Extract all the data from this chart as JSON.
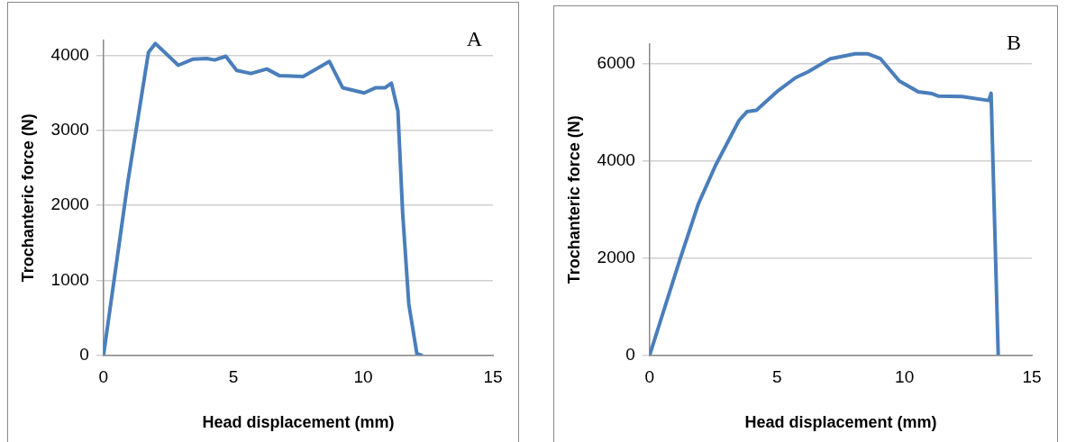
{
  "chart_data": [
    {
      "type": "line",
      "xlabel": "Head displacement (mm)",
      "ylabel": "Trochanteric force (N)",
      "annotations": [
        "A"
      ],
      "series": [
        {
          "color": "#4a7ebb",
          "x": [
            0,
            0.94,
            1.73,
            2.0,
            2.88,
            3.43,
            3.98,
            4.28,
            4.71,
            5.13,
            5.68,
            6.29,
            6.78,
            7.69,
            8.7,
            9.21,
            10.04,
            10.49,
            10.85,
            11.09,
            11.34,
            11.52,
            11.76,
            12.07,
            12.25
          ],
          "values": [
            0,
            2320,
            4040,
            4160,
            3870,
            3950,
            3960,
            3940,
            3990,
            3800,
            3760,
            3820,
            3730,
            3720,
            3920,
            3570,
            3500,
            3570,
            3570,
            3630,
            3260,
            1910,
            680,
            20,
            0
          ]
        }
      ],
      "xlim": [
        0,
        15
      ],
      "xticks": [
        0,
        5,
        10,
        15
      ],
      "ylim": [
        0,
        4200
      ],
      "yticks": [
        0,
        1000,
        2000,
        3000,
        4000
      ],
      "grid": "y",
      "legend": false,
      "marker": "none",
      "line_style": "solid"
    },
    {
      "type": "line",
      "xlabel": "Head displacement (mm)",
      "ylabel": "Trochanteric force (N)",
      "annotations": [
        "B"
      ],
      "series": [
        {
          "color": "#4a7ebb",
          "x": [
            0,
            1.17,
            1.91,
            2.59,
            3.51,
            3.82,
            4.19,
            4.99,
            5.73,
            6.22,
            7.09,
            8.07,
            8.57,
            9.06,
            9.8,
            10.54,
            11.09,
            11.34,
            12.26,
            13.31,
            13.4,
            13.68
          ],
          "values": [
            0,
            1940,
            3110,
            3910,
            4830,
            5010,
            5040,
            5420,
            5710,
            5830,
            6100,
            6200,
            6200,
            6100,
            5640,
            5420,
            5380,
            5330,
            5320,
            5240,
            5390,
            0
          ]
        }
      ],
      "xlim": [
        0,
        15
      ],
      "xticks": [
        0,
        5,
        10,
        15
      ],
      "ylim": [
        0,
        6400
      ],
      "yticks": [
        0,
        2000,
        4000,
        6000
      ],
      "grid": "y",
      "legend": false,
      "marker": "none",
      "line_style": "solid"
    }
  ]
}
